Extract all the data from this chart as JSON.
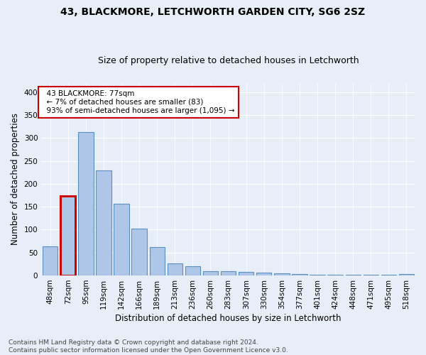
{
  "title": "43, BLACKMORE, LETCHWORTH GARDEN CITY, SG6 2SZ",
  "subtitle": "Size of property relative to detached houses in Letchworth",
  "xlabel": "Distribution of detached houses by size in Letchworth",
  "ylabel": "Number of detached properties",
  "categories": [
    "48sqm",
    "72sqm",
    "95sqm",
    "119sqm",
    "142sqm",
    "166sqm",
    "189sqm",
    "213sqm",
    "236sqm",
    "260sqm",
    "283sqm",
    "307sqm",
    "330sqm",
    "354sqm",
    "377sqm",
    "401sqm",
    "424sqm",
    "448sqm",
    "471sqm",
    "495sqm",
    "518sqm"
  ],
  "values": [
    63,
    174,
    313,
    230,
    157,
    102,
    62,
    27,
    21,
    9,
    9,
    8,
    6,
    4,
    3,
    2,
    1,
    1,
    1,
    1,
    3
  ],
  "bar_color": "#aec6e8",
  "bar_edge_color": "#5a8fc0",
  "highlight_bar_index": 1,
  "highlight_bar_edge_color": "#cc0000",
  "annotation_text": "  43 BLACKMORE: 77sqm\n  ← 7% of detached houses are smaller (83)\n  93% of semi-detached houses are larger (1,095) →",
  "annotation_box_color": "white",
  "annotation_box_edge_color": "#cc0000",
  "ylim": [
    0,
    420
  ],
  "yticks": [
    0,
    50,
    100,
    150,
    200,
    250,
    300,
    350,
    400
  ],
  "background_color": "#e8eef7",
  "grid_color": "white",
  "footer_text": "Contains HM Land Registry data © Crown copyright and database right 2024.\nContains public sector information licensed under the Open Government Licence v3.0.",
  "title_fontsize": 10,
  "subtitle_fontsize": 9,
  "xlabel_fontsize": 8.5,
  "ylabel_fontsize": 8.5,
  "tick_fontsize": 7.5,
  "annotation_fontsize": 7.5,
  "footer_fontsize": 6.5
}
